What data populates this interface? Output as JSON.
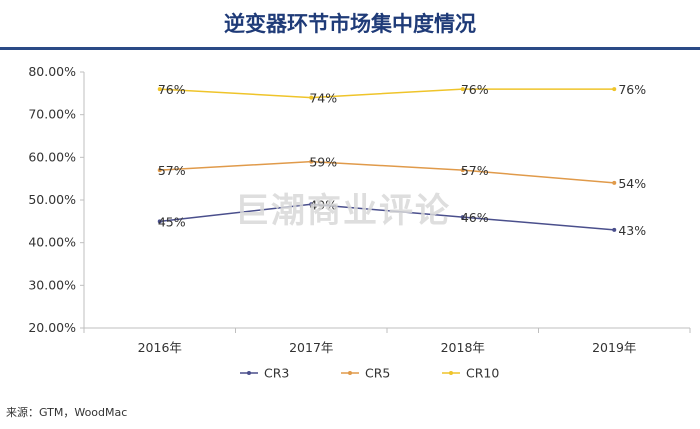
{
  "title": "逆变器环节市场集中度情况",
  "watermark": "巨潮商业评论",
  "source": "来源：GTM，WoodMac",
  "colors": {
    "title": "#1f3b78",
    "rule": "#2a4a86"
  },
  "chart_data": {
    "type": "line",
    "title": "逆变器环节市场集中度情况",
    "categories": [
      "2016年",
      "2017年",
      "2018年",
      "2019年"
    ],
    "ylim": [
      20,
      80
    ],
    "yticks": [
      "20.00%",
      "30.00%",
      "40.00%",
      "50.00%",
      "60.00%",
      "70.00%",
      "80.00%"
    ],
    "grid": false,
    "legend_position": "bottom",
    "series": [
      {
        "name": "CR3",
        "color": "#4a4f8c",
        "values": [
          45,
          49,
          46,
          43
        ],
        "labels": [
          "45%",
          "49%",
          "46%",
          "43%"
        ]
      },
      {
        "name": "CR5",
        "color": "#e09a4a",
        "values": [
          57,
          59,
          57,
          54
        ],
        "labels": [
          "57%",
          "59%",
          "57%",
          "54%"
        ]
      },
      {
        "name": "CR10",
        "color": "#efc42a",
        "values": [
          76,
          74,
          76,
          76
        ],
        "labels": [
          "76%",
          "74%",
          "76%",
          "76%"
        ]
      }
    ]
  }
}
